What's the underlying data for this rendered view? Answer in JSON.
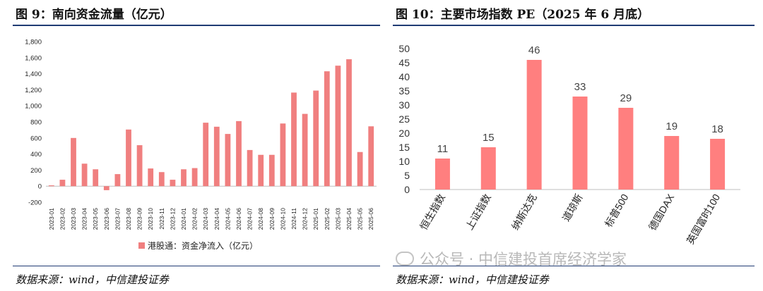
{
  "left": {
    "title": "图 9：南向资金流量（亿元）",
    "source": "数据来源：wind，中信建投证券",
    "chart_data": {
      "type": "bar",
      "title": "南向资金流量（亿元）",
      "categories": [
        "2023-01",
        "2023-02",
        "2023-03",
        "2023-04",
        "2023-05",
        "2023-06",
        "2023-07",
        "2023-08",
        "2023-09",
        "2023-10",
        "2023-11",
        "2023-12",
        "2024-01",
        "2024-02",
        "2024-03",
        "2024-04",
        "2024-05",
        "2024-06",
        "2024-07",
        "2024-08",
        "2024-09",
        "2024-10",
        "2024-11",
        "2024-12",
        "2025-01",
        "2025-02",
        "2025-03",
        "2025-04",
        "2025-05",
        "2025-06"
      ],
      "series": [
        {
          "name": "港股通：资金净流入（亿元）",
          "color": "#f07f7f",
          "values": [
            10,
            80,
            600,
            280,
            210,
            -50,
            150,
            705,
            510,
            220,
            175,
            80,
            210,
            225,
            790,
            740,
            650,
            810,
            450,
            390,
            390,
            780,
            1165,
            900,
            1190,
            1430,
            1500,
            1580,
            425,
            745
          ]
        }
      ],
      "ylim": [
        -200,
        1800
      ],
      "yticks": [
        -200,
        0,
        200,
        400,
        600,
        800,
        1000,
        1200,
        1400,
        1600,
        1800
      ],
      "ytick_labels": [
        "-200",
        "0",
        "200",
        "400",
        "600",
        "800",
        "1,000",
        "1,200",
        "1,400",
        "1,600",
        "1,800"
      ],
      "legend": "bottom",
      "xlabel": "",
      "ylabel": ""
    }
  },
  "right": {
    "title": "图 10：主要市场指数 PE（2025 年 6 月底）",
    "source": "数据来源：wind，中信建投证券",
    "chart_data": {
      "type": "bar",
      "title": "主要市场指数 PE（2025 年 6 月底）",
      "categories": [
        "恒生指数",
        "上证指数",
        "纳斯达克",
        "道琼斯",
        "标普500",
        "德国DAX",
        "英国富时100"
      ],
      "values": [
        11,
        15,
        46,
        33,
        29,
        19,
        18
      ],
      "labels": [
        "11",
        "15",
        "46",
        "33",
        "29",
        "19",
        "18"
      ],
      "color": "#ff7f7f",
      "ylim": [
        0,
        50
      ],
      "yticks": [
        0,
        5,
        10,
        15,
        20,
        25,
        30,
        35,
        40,
        45,
        50
      ],
      "xlabel": "",
      "ylabel": ""
    }
  },
  "watermark": "公众号 · 中信建投首席经济学家"
}
